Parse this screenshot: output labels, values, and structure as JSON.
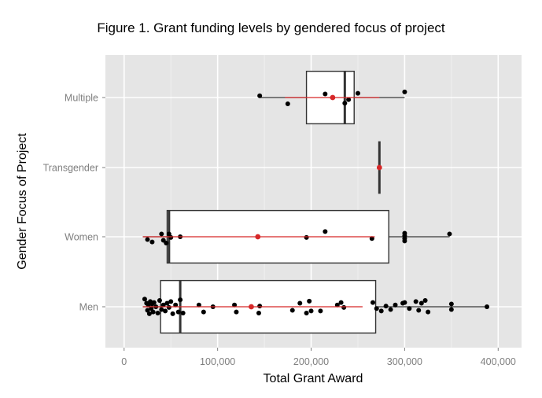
{
  "chart_data": {
    "type": "boxplot",
    "title": "Figure 1. Grant funding levels by gendered focus of project",
    "xlabel": "Total Grant Award",
    "ylabel": "Gender Focus of Project",
    "xlim": [
      -20000,
      425000
    ],
    "xticks": [
      0,
      100000,
      200000,
      300000,
      400000
    ],
    "xtick_labels": [
      "0",
      "100,000",
      "200,000",
      "300,000",
      "400,000"
    ],
    "categories": [
      "Men",
      "Women",
      "Transgender",
      "Multiple"
    ],
    "orientation": "horizontal",
    "grid": true,
    "legend": "none",
    "colors": {
      "panel": "#e5e5e5",
      "grid": "#ffffff",
      "points": "#000000",
      "mean": "#d62728",
      "box_fill": "#ffffff"
    },
    "boxes": [
      {
        "category": "Men",
        "whisker_low": 20000,
        "q1": 39000,
        "median": 60000,
        "q3": 269000,
        "whisker_high": 388000,
        "mean": 136000,
        "mean_ci": [
          20000,
          255000
        ]
      },
      {
        "category": "Women",
        "whisker_low": 20000,
        "q1": 46000,
        "median": 48000,
        "q3": 283000,
        "whisker_high": 348000,
        "mean": 143000,
        "mean_ci": [
          20000,
          268000
        ]
      },
      {
        "category": "Transgender",
        "whisker_low": 273000,
        "q1": 273000,
        "median": 273000,
        "q3": 273000,
        "whisker_high": 273000,
        "mean": 273000,
        "mean_ci": [
          273000,
          273000
        ]
      },
      {
        "category": "Multiple",
        "whisker_low": 145000,
        "q1": 195000,
        "median": 236000,
        "q3": 246000,
        "whisker_high": 300000,
        "mean": 223000,
        "mean_ci": [
          172000,
          273000
        ]
      }
    ],
    "points": [
      {
        "category": "Men",
        "x": 22000,
        "y": 0.22
      },
      {
        "category": "Men",
        "x": 24000,
        "y": 0.1
      },
      {
        "category": "Men",
        "x": 25000,
        "y": -0.1
      },
      {
        "category": "Men",
        "x": 26000,
        "y": 0.05
      },
      {
        "category": "Men",
        "x": 27000,
        "y": -0.2
      },
      {
        "category": "Men",
        "x": 28000,
        "y": 0.15
      },
      {
        "category": "Men",
        "x": 29000,
        "y": -0.05
      },
      {
        "category": "Men",
        "x": 30000,
        "y": 0.08
      },
      {
        "category": "Men",
        "x": 31000,
        "y": -0.15
      },
      {
        "category": "Men",
        "x": 32000,
        "y": 0.12
      },
      {
        "category": "Men",
        "x": 34000,
        "y": 0.0
      },
      {
        "category": "Men",
        "x": 36000,
        "y": -0.18
      },
      {
        "category": "Men",
        "x": 38000,
        "y": 0.18
      },
      {
        "category": "Men",
        "x": 40000,
        "y": -0.08
      },
      {
        "category": "Men",
        "x": 42000,
        "y": 0.05
      },
      {
        "category": "Men",
        "x": 44000,
        "y": -0.12
      },
      {
        "category": "Men",
        "x": 46000,
        "y": 0.1
      },
      {
        "category": "Men",
        "x": 48000,
        "y": -0.02
      },
      {
        "category": "Men",
        "x": 50000,
        "y": 0.15
      },
      {
        "category": "Men",
        "x": 52000,
        "y": -0.2
      },
      {
        "category": "Men",
        "x": 55000,
        "y": 0.05
      },
      {
        "category": "Men",
        "x": 58000,
        "y": -0.15
      },
      {
        "category": "Men",
        "x": 60000,
        "y": 0.2
      },
      {
        "category": "Men",
        "x": 63000,
        "y": -0.18
      },
      {
        "category": "Men",
        "x": 80000,
        "y": 0.05
      },
      {
        "category": "Men",
        "x": 85000,
        "y": -0.15
      },
      {
        "category": "Men",
        "x": 95000,
        "y": 0.0
      },
      {
        "category": "Men",
        "x": 118000,
        "y": 0.05
      },
      {
        "category": "Men",
        "x": 120000,
        "y": -0.15
      },
      {
        "category": "Men",
        "x": 145000,
        "y": 0.02
      },
      {
        "category": "Men",
        "x": 144000,
        "y": -0.18
      },
      {
        "category": "Men",
        "x": 180000,
        "y": -0.1
      },
      {
        "category": "Men",
        "x": 188000,
        "y": 0.1
      },
      {
        "category": "Men",
        "x": 195000,
        "y": -0.18
      },
      {
        "category": "Men",
        "x": 198000,
        "y": 0.16
      },
      {
        "category": "Men",
        "x": 200000,
        "y": -0.12
      },
      {
        "category": "Men",
        "x": 210000,
        "y": -0.12
      },
      {
        "category": "Men",
        "x": 228000,
        "y": 0.05
      },
      {
        "category": "Men",
        "x": 232000,
        "y": 0.12
      },
      {
        "category": "Men",
        "x": 235000,
        "y": -0.02
      },
      {
        "category": "Men",
        "x": 266000,
        "y": 0.12
      },
      {
        "category": "Men",
        "x": 270000,
        "y": -0.05
      },
      {
        "category": "Men",
        "x": 275000,
        "y": -0.12
      },
      {
        "category": "Men",
        "x": 280000,
        "y": 0.02
      },
      {
        "category": "Men",
        "x": 285000,
        "y": -0.08
      },
      {
        "category": "Men",
        "x": 290000,
        "y": 0.05
      },
      {
        "category": "Men",
        "x": 298000,
        "y": 0.1
      },
      {
        "category": "Men",
        "x": 300000,
        "y": 0.12
      },
      {
        "category": "Men",
        "x": 305000,
        "y": -0.05
      },
      {
        "category": "Men",
        "x": 312000,
        "y": 0.15
      },
      {
        "category": "Men",
        "x": 315000,
        "y": -0.1
      },
      {
        "category": "Men",
        "x": 318000,
        "y": 0.1
      },
      {
        "category": "Men",
        "x": 322000,
        "y": 0.18
      },
      {
        "category": "Men",
        "x": 325000,
        "y": -0.15
      },
      {
        "category": "Men",
        "x": 350000,
        "y": 0.08
      },
      {
        "category": "Men",
        "x": 350000,
        "y": -0.08
      },
      {
        "category": "Men",
        "x": 388000,
        "y": 0.0
      },
      {
        "category": "Women",
        "x": 25000,
        "y": -0.08
      },
      {
        "category": "Women",
        "x": 30000,
        "y": -0.15
      },
      {
        "category": "Women",
        "x": 40000,
        "y": 0.08
      },
      {
        "category": "Women",
        "x": 42000,
        "y": -0.1
      },
      {
        "category": "Women",
        "x": 45000,
        "y": -0.18
      },
      {
        "category": "Women",
        "x": 48000,
        "y": 0.08
      },
      {
        "category": "Women",
        "x": 50000,
        "y": -0.02
      },
      {
        "category": "Women",
        "x": 60000,
        "y": 0.0
      },
      {
        "category": "Women",
        "x": 195000,
        "y": -0.02
      },
      {
        "category": "Women",
        "x": 215000,
        "y": 0.15
      },
      {
        "category": "Women",
        "x": 265000,
        "y": -0.05
      },
      {
        "category": "Women",
        "x": 300000,
        "y": 0.1
      },
      {
        "category": "Women",
        "x": 300000,
        "y": 0.03
      },
      {
        "category": "Women",
        "x": 300000,
        "y": -0.05
      },
      {
        "category": "Women",
        "x": 300000,
        "y": -0.12
      },
      {
        "category": "Women",
        "x": 348000,
        "y": 0.08
      },
      {
        "category": "Transgender",
        "x": 273000,
        "y": 0.0
      },
      {
        "category": "Multiple",
        "x": 145000,
        "y": 0.05
      },
      {
        "category": "Multiple",
        "x": 175000,
        "y": -0.18
      },
      {
        "category": "Multiple",
        "x": 215000,
        "y": 0.1
      },
      {
        "category": "Multiple",
        "x": 236000,
        "y": -0.16
      },
      {
        "category": "Multiple",
        "x": 240000,
        "y": -0.06
      },
      {
        "category": "Multiple",
        "x": 250000,
        "y": 0.12
      },
      {
        "category": "Multiple",
        "x": 300000,
        "y": 0.16
      }
    ]
  }
}
